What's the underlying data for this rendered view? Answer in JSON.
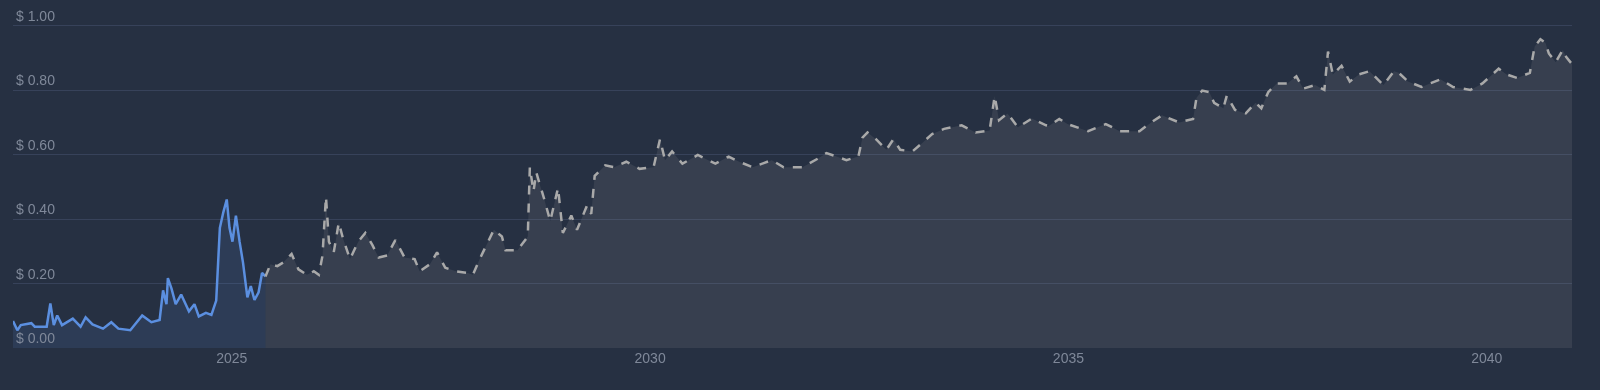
{
  "chart_data": {
    "type": "area",
    "xlim": [
      "2022-05-22",
      "2041-01-07"
    ],
    "xticks": [
      {
        "value": "2025-01-01",
        "label": "2025"
      },
      {
        "value": "2030-01-01",
        "label": "2030"
      },
      {
        "value": "2035-01-01",
        "label": "2035"
      },
      {
        "value": "2040-01-01",
        "label": "2040"
      }
    ],
    "ylim": [
      0,
      1.08
    ],
    "yticks": [
      {
        "value": 0,
        "label": "$ 0.00"
      },
      {
        "value": 0.2,
        "label": "$ 0.20"
      },
      {
        "value": 0.4,
        "label": "$ 0.40"
      },
      {
        "value": 0.6,
        "label": "$ 0.60"
      },
      {
        "value": 0.8,
        "label": "$ 0.80"
      },
      {
        "value": 1.0,
        "label": "$ 1.00"
      }
    ],
    "grid": "y",
    "marker": "none",
    "series": [
      {
        "color": "#5b8fe0",
        "line_style": "solid",
        "x": [
          "2022-05-22",
          "2022-06-10",
          "2022-06-25",
          "2022-08-10",
          "2022-08-25",
          "2022-10-16",
          "2022-11-01",
          "2022-11-16",
          "2022-12-01",
          "2022-12-22",
          "2023-02-07",
          "2023-03-13",
          "2023-04-04",
          "2023-05-04",
          "2023-06-19",
          "2023-07-25",
          "2023-08-25",
          "2023-10-16",
          "2023-12-07",
          "2024-01-16",
          "2024-02-21",
          "2024-03-07",
          "2024-03-22",
          "2024-03-28",
          "2024-04-13",
          "2024-05-01",
          "2024-05-25",
          "2024-06-28",
          "2024-07-22",
          "2024-08-10",
          "2024-09-10",
          "2024-10-04",
          "2024-10-25",
          "2024-11-10",
          "2024-11-25",
          "2024-12-10",
          "2024-12-22",
          "2025-01-04",
          "2025-01-19",
          "2025-02-04",
          "2025-02-19",
          "2025-03-10",
          "2025-03-25",
          "2025-04-10",
          "2025-04-28",
          "2025-05-13",
          "2025-05-28"
        ],
        "values": [
          0.084,
          0.055,
          0.071,
          0.077,
          0.066,
          0.066,
          0.138,
          0.071,
          0.101,
          0.071,
          0.091,
          0.066,
          0.095,
          0.073,
          0.06,
          0.08,
          0.06,
          0.055,
          0.101,
          0.08,
          0.087,
          0.179,
          0.136,
          0.217,
          0.184,
          0.136,
          0.166,
          0.114,
          0.136,
          0.098,
          0.109,
          0.103,
          0.147,
          0.373,
          0.421,
          0.461,
          0.373,
          0.33,
          0.411,
          0.33,
          0.265,
          0.157,
          0.192,
          0.149,
          0.173,
          0.233,
          0.222
        ]
      },
      {
        "color": "#a9a9a9",
        "line_style": "dashed",
        "x": [
          "2025-05-28",
          "2025-06-19",
          "2025-07-19",
          "2025-08-13",
          "2025-09-19",
          "2025-10-19",
          "2025-11-25",
          "2025-12-25",
          "2026-01-16",
          "2026-02-01",
          "2026-02-16",
          "2026-03-01",
          "2026-03-22",
          "2026-04-13",
          "2026-05-01",
          "2026-06-01",
          "2026-07-07",
          "2026-08-07",
          "2026-09-07",
          "2026-10-04",
          "2026-11-10",
          "2026-12-16",
          "2027-01-25",
          "2027-03-10",
          "2027-04-01",
          "2027-05-16",
          "2027-06-16",
          "2027-07-22",
          "2027-09-07",
          "2027-10-28",
          "2027-11-19",
          "2027-12-19",
          "2028-02-19",
          "2028-03-25",
          "2028-04-10",
          "2028-06-01",
          "2028-07-16",
          "2028-07-25",
          "2028-08-10",
          "2028-08-22",
          "2028-09-25",
          "2028-10-22",
          "2028-11-25",
          "2028-12-16",
          "2029-01-22",
          "2029-02-16",
          "2029-04-01",
          "2029-04-19",
          "2029-05-04",
          "2029-06-19",
          "2029-07-28",
          "2029-09-19",
          "2029-11-16",
          "2030-01-16",
          "2030-02-13",
          "2030-03-07",
          "2030-04-07",
          "2030-05-22",
          "2030-07-28",
          "2030-10-13",
          "2030-12-10",
          "2031-01-25",
          "2031-03-25",
          "2031-06-16",
          "2031-08-07",
          "2031-10-28",
          "2032-01-04",
          "2032-02-10",
          "2032-03-25",
          "2032-05-07",
          "2032-06-28",
          "2032-07-16",
          "2032-08-07",
          "2032-09-13",
          "2032-10-28",
          "2032-11-28",
          "2032-12-28",
          "2033-02-19",
          "2033-04-04",
          "2033-05-16",
          "2033-07-07",
          "2033-09-22",
          "2033-11-22",
          "2034-01-22",
          "2034-02-13",
          "2034-03-04",
          "2034-04-10",
          "2034-05-25",
          "2034-07-25",
          "2034-09-25",
          "2034-10-07",
          "2034-11-22",
          "2034-12-28",
          "2035-03-28",
          "2035-06-13",
          "2035-08-13",
          "2035-11-07",
          "2035-12-28",
          "2036-02-13",
          "2036-04-28",
          "2036-06-28",
          "2036-07-13",
          "2036-08-07",
          "2036-09-07",
          "2036-09-28",
          "2036-11-07",
          "2036-11-22",
          "2036-12-28",
          "2037-02-13",
          "2037-03-28",
          "2037-04-22",
          "2037-05-22",
          "2037-06-28",
          "2037-08-13",
          "2037-09-22",
          "2037-10-22",
          "2037-12-13",
          "2038-01-22",
          "2038-02-07",
          "2038-02-28",
          "2038-04-07",
          "2038-05-13",
          "2038-06-22",
          "2038-08-07",
          "2038-10-07",
          "2038-11-22",
          "2038-12-13",
          "2039-01-22",
          "2039-03-22",
          "2039-04-28",
          "2039-06-13",
          "2039-08-07",
          "2039-10-22",
          "2039-12-13",
          "2040-02-22",
          "2040-03-28",
          "2040-05-13",
          "2040-07-07",
          "2040-07-28",
          "2040-08-22",
          "2040-09-13",
          "2040-09-28",
          "2040-10-28",
          "2040-11-28",
          "2040-12-13",
          "2041-01-07"
        ],
        "values": [
          0.222,
          0.26,
          0.254,
          0.265,
          0.292,
          0.244,
          0.227,
          0.238,
          0.227,
          0.287,
          0.47,
          0.33,
          0.297,
          0.389,
          0.341,
          0.276,
          0.33,
          0.357,
          0.319,
          0.281,
          0.287,
          0.335,
          0.281,
          0.276,
          0.238,
          0.26,
          0.297,
          0.249,
          0.238,
          0.233,
          0.227,
          0.276,
          0.367,
          0.346,
          0.303,
          0.303,
          0.346,
          0.561,
          0.486,
          0.545,
          0.464,
          0.394,
          0.497,
          0.357,
          0.411,
          0.367,
          0.443,
          0.416,
          0.534,
          0.567,
          0.561,
          0.578,
          0.556,
          0.561,
          0.648,
          0.583,
          0.61,
          0.572,
          0.599,
          0.572,
          0.594,
          0.578,
          0.561,
          0.583,
          0.561,
          0.561,
          0.588,
          0.605,
          0.594,
          0.583,
          0.594,
          0.653,
          0.669,
          0.648,
          0.615,
          0.648,
          0.615,
          0.61,
          0.637,
          0.664,
          0.68,
          0.691,
          0.669,
          0.675,
          0.782,
          0.707,
          0.728,
          0.685,
          0.712,
          0.691,
          0.689,
          0.711,
          0.695,
          0.673,
          0.695,
          0.673,
          0.673,
          0.7,
          0.722,
          0.7,
          0.711,
          0.777,
          0.799,
          0.794,
          0.761,
          0.744,
          0.783,
          0.739,
          0.728,
          0.761,
          0.744,
          0.794,
          0.821,
          0.821,
          0.843,
          0.805,
          0.816,
          0.801,
          0.92,
          0.849,
          0.876,
          0.827,
          0.849,
          0.859,
          0.816,
          0.859,
          0.854,
          0.827,
          0.81,
          0.821,
          0.834,
          0.81,
          0.801,
          0.821,
          0.867,
          0.849,
          0.838,
          0.854,
          0.936,
          0.958,
          0.947,
          0.914,
          0.887,
          0.925,
          0.903,
          0.881
        ]
      }
    ]
  }
}
